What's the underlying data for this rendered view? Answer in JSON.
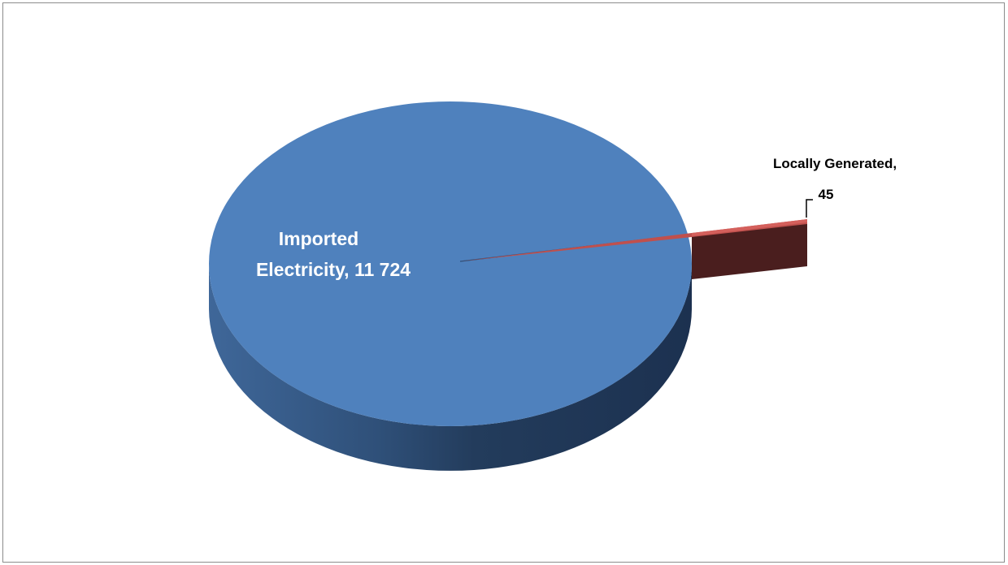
{
  "chart_data": {
    "type": "pie",
    "style": "3d-exploded",
    "title": "",
    "slices": [
      {
        "name": "Imported Electricity",
        "value": 11724,
        "label_line1": "Imported",
        "label_line2": "Electricity,  11 724",
        "color": "#4F81BD"
      },
      {
        "name": "Locally Generated",
        "value": 45,
        "label_line1": "Locally Generated,",
        "label_line2": "45",
        "color": "#C0504D"
      }
    ],
    "legend": "none"
  }
}
